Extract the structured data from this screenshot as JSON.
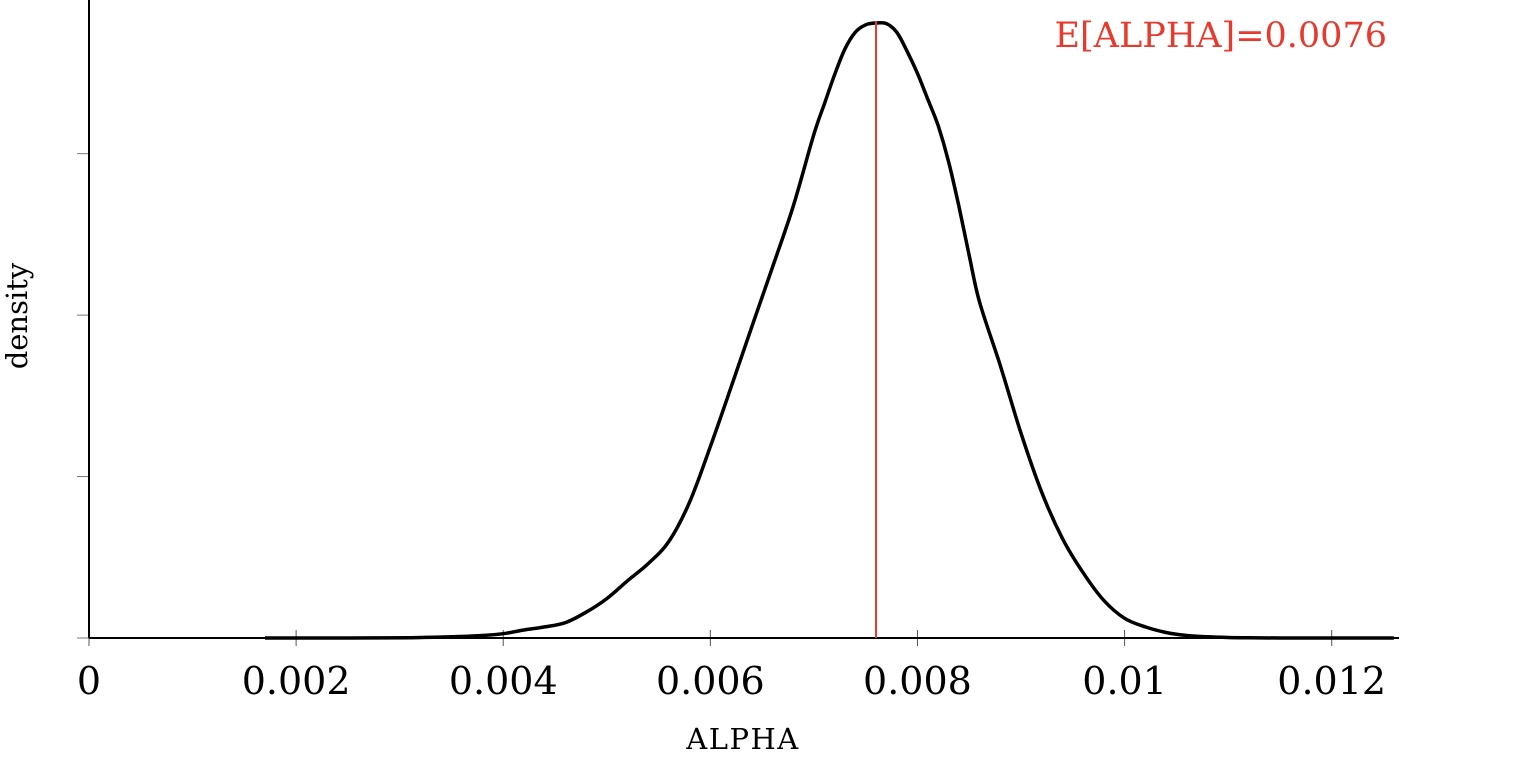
{
  "chart_data": {
    "type": "line",
    "xlabel": "ALPHA",
    "ylabel": "density",
    "xlim": [
      0,
      0.01265
    ],
    "ylim": [
      0,
      1
    ],
    "x_ticks": [
      0,
      0.002,
      0.004,
      0.006,
      0.008,
      0.01,
      0.012
    ],
    "x_tick_labels": [
      "0",
      "0.002",
      "0.004",
      "0.006",
      "0.008",
      "0.01",
      "0.012"
    ],
    "y_ticks": [
      0,
      0.2625,
      0.525,
      0.7875
    ],
    "y_tick_labels_shown": false,
    "grid": false,
    "series": [
      {
        "color": "#000000",
        "x": [
          0.0017,
          0.0025,
          0.0031,
          0.0035,
          0.0038,
          0.004,
          0.0042,
          0.0044,
          0.0046,
          0.0048,
          0.005,
          0.0052,
          0.0054,
          0.0056,
          0.0058,
          0.006,
          0.0062,
          0.0064,
          0.0066,
          0.0068,
          0.007,
          0.0071,
          0.0072,
          0.0073,
          0.0074,
          0.0075,
          0.0076,
          0.0077,
          0.0078,
          0.0079,
          0.008,
          0.0081,
          0.0082,
          0.0083,
          0.0084,
          0.0085,
          0.0086,
          0.0088,
          0.009,
          0.0092,
          0.0094,
          0.0096,
          0.0098,
          0.01,
          0.0102,
          0.0104,
          0.0106,
          0.0108,
          0.011,
          0.0112,
          0.0115,
          0.012,
          0.0126
        ],
        "y": [
          0.0,
          0.0,
          0.0005,
          0.002,
          0.004,
          0.007,
          0.013,
          0.018,
          0.025,
          0.042,
          0.064,
          0.093,
          0.121,
          0.157,
          0.221,
          0.311,
          0.408,
          0.506,
          0.603,
          0.702,
          0.819,
          0.868,
          0.916,
          0.958,
          0.985,
          0.997,
          1.0,
          0.999,
          0.985,
          0.954,
          0.918,
          0.876,
          0.833,
          0.775,
          0.702,
          0.622,
          0.546,
          0.443,
          0.333,
          0.237,
          0.162,
          0.106,
          0.061,
          0.032,
          0.018,
          0.009,
          0.004,
          0.002,
          0.0008,
          0.0003,
          0.0,
          0.0,
          0.0
        ]
      }
    ],
    "vline": {
      "x": 0.0076,
      "color": "#e8392d"
    },
    "annotation": {
      "text": "E[ALPHA]=0.0076",
      "color": "#e8392d"
    }
  }
}
